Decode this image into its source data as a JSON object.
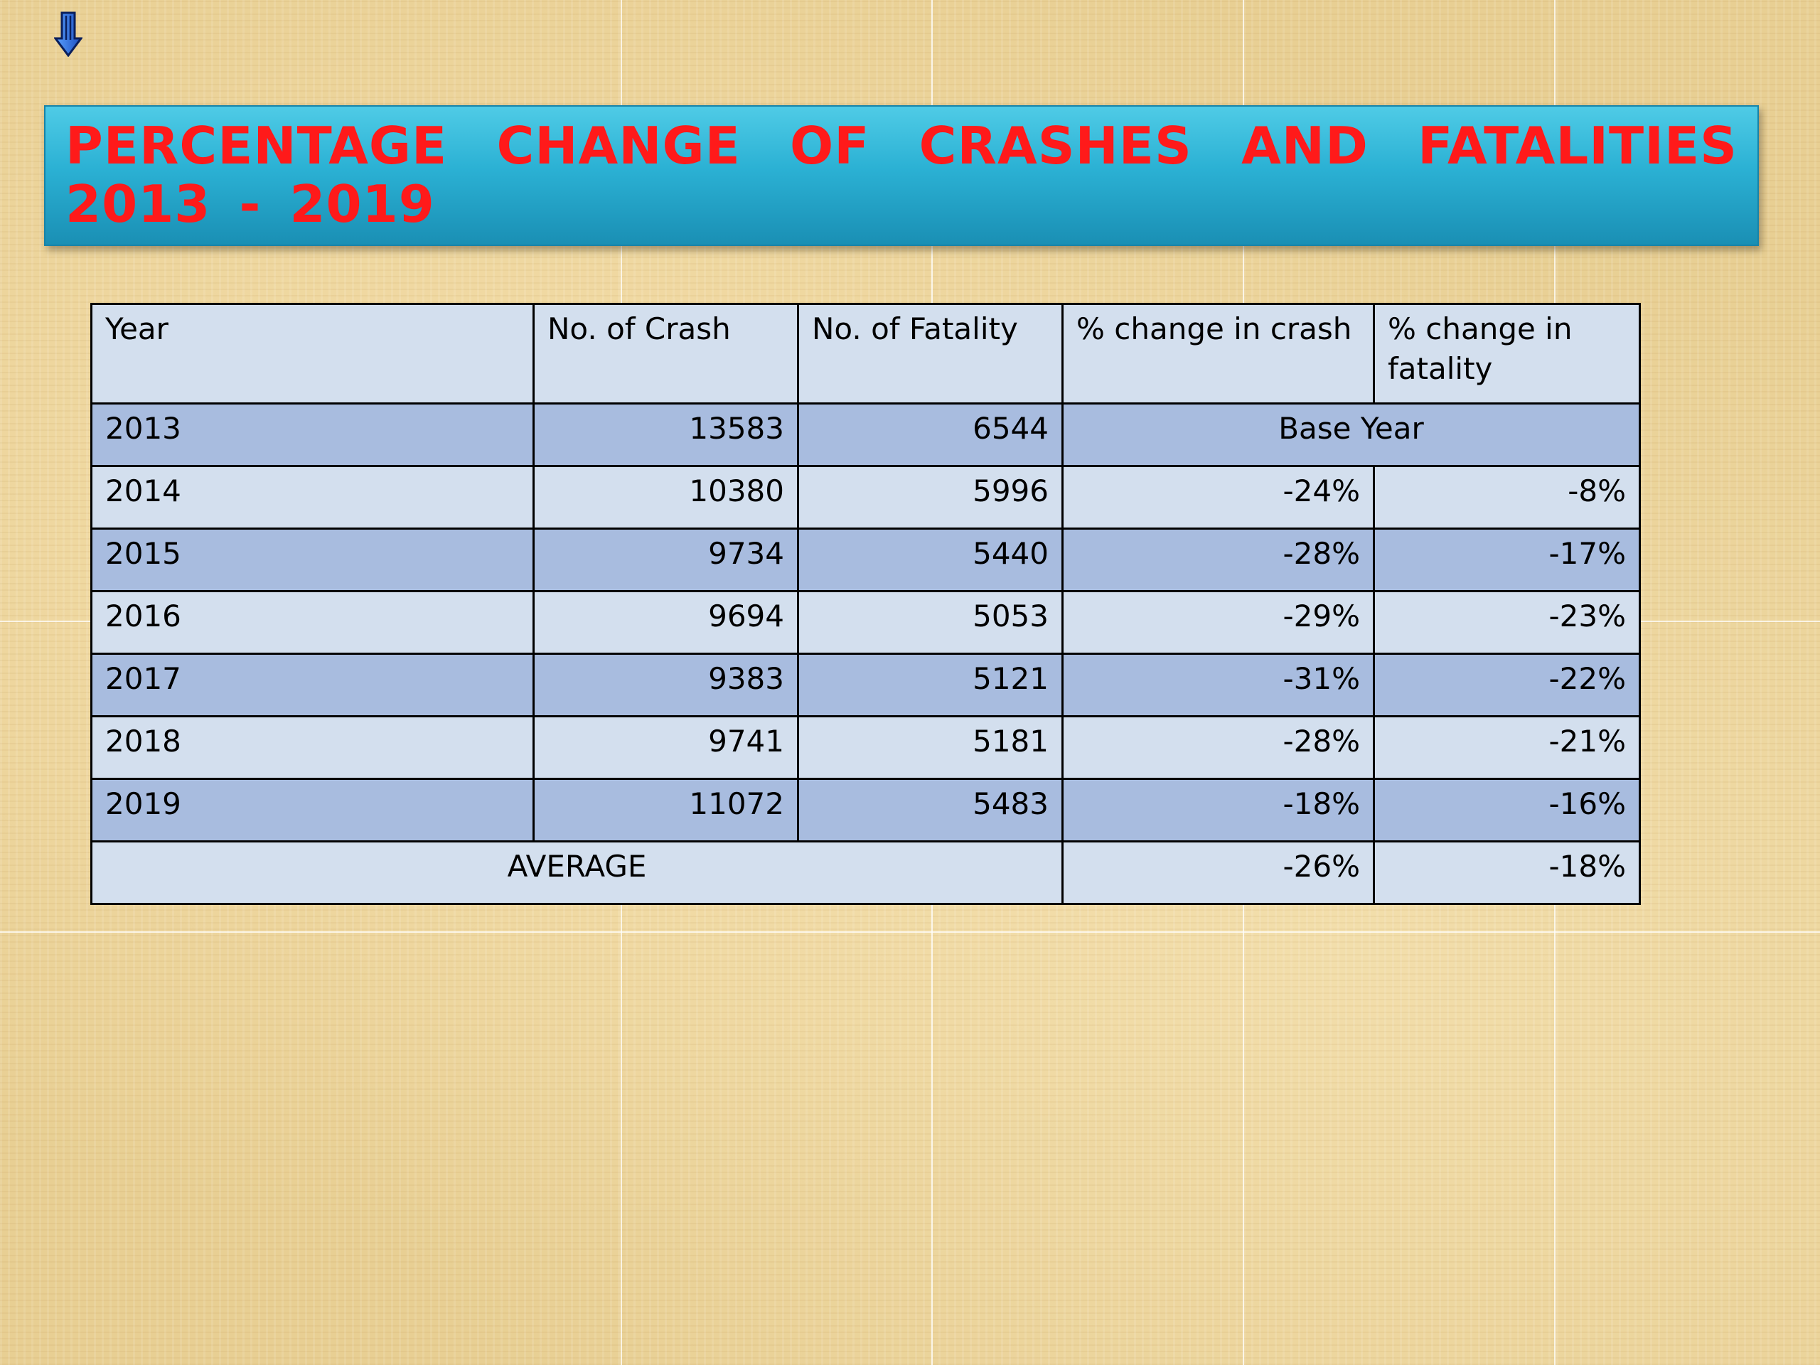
{
  "title": "PERCENTAGE CHANGE OF CRASHES AND FATALITIES 2013 - 2019",
  "icons": {
    "corner": "down-arrow-icon"
  },
  "colors": {
    "title_text": "#ff1a1a",
    "banner": "#2bb1d4",
    "row_light": "#d3dfee",
    "row_dark": "#a8bcdf"
  },
  "table": {
    "headers": [
      "Year",
      "No. of Crash",
      "No. of Fatality",
      "% change in crash",
      "% change in fatality"
    ],
    "rows": [
      [
        "2013",
        "13583",
        "6544",
        "Base Year",
        ""
      ],
      [
        "2014",
        "10380",
        "5996",
        "-24%",
        "-8%"
      ],
      [
        "2015",
        "9734",
        "5440",
        "-28%",
        "-17%"
      ],
      [
        "2016",
        "9694",
        "5053",
        "-29%",
        "-23%"
      ],
      [
        "2017",
        "9383",
        "5121",
        "-31%",
        "-22%"
      ],
      [
        "2018",
        "9741",
        "5181",
        "-28%",
        "-21%"
      ],
      [
        "2019",
        "11072",
        "5483",
        "-18%",
        "-16%"
      ]
    ],
    "average": {
      "label": "AVERAGE",
      "crash": "-26%",
      "fatality": "-18%"
    }
  }
}
